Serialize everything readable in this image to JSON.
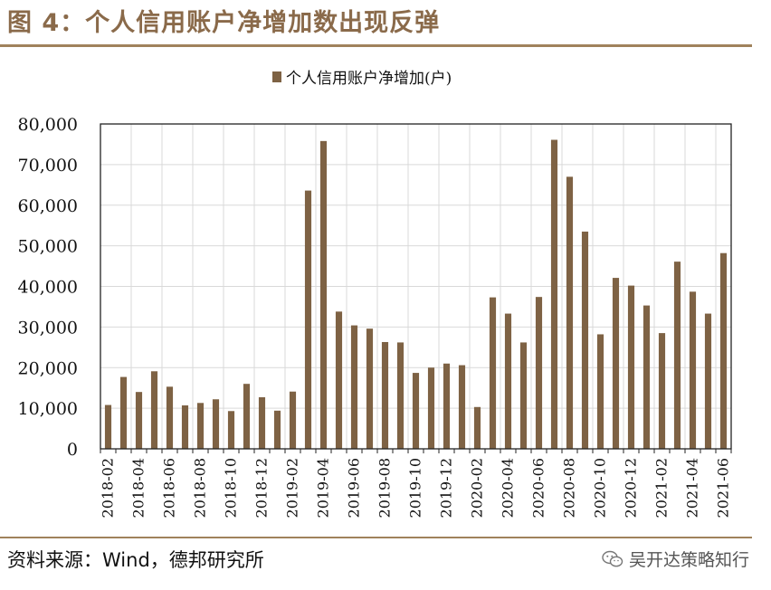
{
  "figure": {
    "title": "图 4：个人信用账户净增加数出现反弹",
    "source": "资料来源：Wind，德邦研究所",
    "watermark": "吴开达策略知行"
  },
  "colors": {
    "bar": "#7e6244",
    "accent": "#a0825c",
    "title": "#8a6a4a",
    "grid": "#d9d9d9"
  },
  "chart_data": {
    "type": "bar",
    "title": "",
    "legend": [
      "个人信用账户净增加(户)"
    ],
    "legend_position": "top-center",
    "xlabel": "",
    "ylabel": "",
    "ylim": [
      0,
      80000
    ],
    "yticks": [
      0,
      10000,
      20000,
      30000,
      40000,
      50000,
      60000,
      70000,
      80000
    ],
    "ytick_labels": [
      "0",
      "10,000",
      "20,000",
      "30,000",
      "40,000",
      "50,000",
      "60,000",
      "70,000",
      "80,000"
    ],
    "grid": true,
    "categories": [
      "2018-02",
      "2018-03",
      "2018-04",
      "2018-05",
      "2018-06",
      "2018-07",
      "2018-08",
      "2018-09",
      "2018-10",
      "2018-11",
      "2018-12",
      "2019-01",
      "2019-02",
      "2019-03",
      "2019-04",
      "2019-05",
      "2019-06",
      "2019-07",
      "2019-08",
      "2019-09",
      "2019-10",
      "2019-11",
      "2019-12",
      "2020-01",
      "2020-02",
      "2020-03",
      "2020-04",
      "2020-05",
      "2020-06",
      "2020-07",
      "2020-08",
      "2020-09",
      "2020-10",
      "2020-11",
      "2020-12",
      "2021-01",
      "2021-02",
      "2021-03",
      "2021-04",
      "2021-05",
      "2021-06"
    ],
    "xtick_labels": [
      "2018-02",
      "",
      "2018-04",
      "",
      "2018-06",
      "",
      "2018-08",
      "",
      "2018-10",
      "",
      "2018-12",
      "",
      "2019-02",
      "",
      "2019-04",
      "",
      "2019-06",
      "",
      "2019-08",
      "",
      "2019-10",
      "",
      "2019-12",
      "",
      "2020-02",
      "",
      "2020-04",
      "",
      "2020-06",
      "",
      "2020-08",
      "",
      "2020-10",
      "",
      "2020-12",
      "",
      "2021-02",
      "",
      "2021-04",
      "",
      "2021-06"
    ],
    "series": [
      {
        "name": "个人信用账户净增加(户)",
        "values": [
          10800,
          17700,
          14000,
          19100,
          15300,
          10700,
          11300,
          12200,
          9300,
          16000,
          12700,
          9400,
          14100,
          63600,
          75800,
          33800,
          30400,
          29600,
          26300,
          26200,
          18700,
          20000,
          21000,
          20600,
          10300,
          37300,
          33300,
          26200,
          37400,
          76100,
          67000,
          53500,
          28200,
          42100,
          40200,
          35300,
          28500,
          46100,
          38700,
          33300,
          48200
        ]
      }
    ]
  }
}
